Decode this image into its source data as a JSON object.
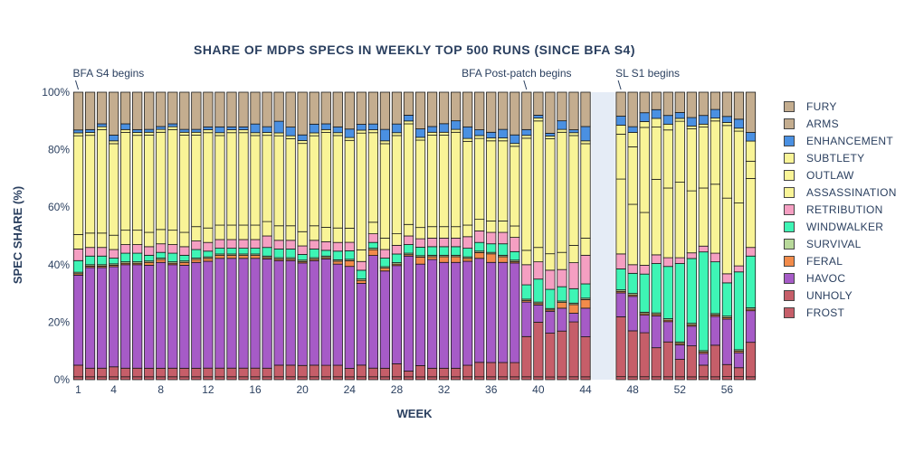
{
  "chart_data": {
    "type": "bar",
    "stacked": true,
    "title": "SHARE OF MDPS SPECS IN WEEKLY TOP 500 RUNS (SINCE BFA S4)",
    "xlabel": "WEEK",
    "ylabel": "SPEC SHARE (%)",
    "ylim": [
      0,
      100
    ],
    "xlim": [
      0.5,
      58.5
    ],
    "y_ticks": [
      "0%",
      "20%",
      "40%",
      "60%",
      "80%",
      "100%"
    ],
    "x_ticks": [
      1,
      4,
      8,
      12,
      16,
      20,
      24,
      28,
      32,
      36,
      40,
      44,
      48,
      52,
      56
    ],
    "weeks": [
      1,
      2,
      3,
      4,
      5,
      6,
      7,
      8,
      9,
      10,
      11,
      12,
      13,
      14,
      15,
      16,
      17,
      18,
      19,
      20,
      21,
      22,
      23,
      24,
      25,
      26,
      27,
      28,
      29,
      30,
      31,
      32,
      33,
      34,
      35,
      36,
      37,
      38,
      39,
      40,
      41,
      42,
      43,
      44,
      47,
      48,
      49,
      50,
      51,
      52,
      53,
      54,
      55,
      56,
      57,
      58
    ],
    "shaded_region": [
      44.5,
      46.5
    ],
    "legend_position": "right",
    "annotations": [
      {
        "text": "BFA S4 begins",
        "week": 1
      },
      {
        "text": "BFA Post-patch begins",
        "week": 39
      },
      {
        "text": "SL S1 begins",
        "week": 47
      }
    ],
    "series": [
      {
        "name": "FROST",
        "color": "#c65e69",
        "values": [
          1,
          1,
          1,
          1,
          1,
          1,
          1,
          1,
          1,
          1,
          1,
          1,
          1,
          1,
          1,
          1,
          1,
          1,
          1,
          1,
          1,
          1,
          1,
          1,
          1,
          1,
          1,
          1,
          1,
          1,
          1,
          1,
          1,
          1,
          1,
          1,
          1,
          1,
          1,
          1,
          1,
          1,
          1,
          1,
          1,
          1,
          1,
          1,
          1,
          1,
          1,
          1,
          1,
          1,
          1,
          1
        ]
      },
      {
        "name": "UNHOLY",
        "color": "#c65e69",
        "values": [
          4,
          3,
          3,
          3.5,
          3,
          3,
          3,
          3,
          3,
          3,
          3,
          3,
          3,
          3,
          3,
          3,
          3,
          4,
          4,
          4,
          4,
          4,
          4,
          3,
          4,
          3,
          3,
          4.5,
          2,
          4,
          3,
          3,
          3,
          4,
          5,
          5,
          5,
          5,
          14,
          19,
          16,
          16,
          19,
          14,
          20,
          16,
          15,
          10,
          12,
          6,
          11,
          4,
          11,
          4,
          3,
          12
        ]
      },
      {
        "name": "HAVOC",
        "color": "#a65bc7",
        "values": [
          31,
          35,
          35,
          35,
          36,
          36,
          36,
          37,
          36,
          36,
          37,
          37,
          38,
          38,
          38,
          38,
          38,
          36,
          36,
          36,
          36,
          37,
          35,
          36,
          28,
          39,
          34,
          34,
          40,
          36,
          38,
          37,
          37,
          36,
          36,
          35,
          35,
          35,
          12,
          6,
          8,
          8,
          3,
          10,
          8,
          12,
          6,
          11,
          7,
          5,
          7,
          4,
          10,
          15,
          5,
          11
        ]
      },
      {
        "name": "FERAL",
        "color": "#f28b4a",
        "values": [
          0.5,
          0.5,
          0.5,
          0.5,
          0.5,
          0.5,
          1,
          1,
          0.5,
          1,
          1,
          1,
          1,
          1,
          1,
          1,
          0.5,
          0.5,
          0.5,
          0.5,
          0.5,
          0.5,
          1,
          2,
          1,
          2,
          1,
          0.5,
          0.5,
          2.5,
          1,
          2,
          2,
          1,
          2,
          3,
          2,
          0.5,
          0.5,
          0.5,
          0.5,
          2,
          3,
          3,
          0.5,
          0.5,
          0.5,
          0.5,
          0.5,
          0.5,
          0.5,
          0.5,
          0.5,
          0.5,
          0.5,
          0.5
        ]
      },
      {
        "name": "SURVIVAL",
        "color": "#b8d99a",
        "values": [
          0.5,
          0.5,
          0.5,
          0.5,
          0.5,
          0.5,
          0.5,
          0.5,
          0.5,
          0.5,
          0.5,
          0.5,
          0.5,
          0.5,
          0.5,
          0.5,
          0.5,
          0.5,
          0.5,
          0.5,
          0.5,
          0.5,
          0.5,
          0.5,
          0.5,
          0.5,
          0.5,
          0.5,
          0.5,
          0.5,
          0.5,
          0.5,
          0.5,
          0.5,
          0.5,
          0.5,
          0.5,
          0.5,
          0.5,
          0.5,
          0.5,
          0.5,
          0.5,
          0.5,
          0.5,
          0.5,
          0.5,
          0.5,
          0.5,
          0.5,
          0.5,
          0.5,
          0.5,
          0.5,
          0.5,
          0.5
        ]
      },
      {
        "name": "WINDWALKER",
        "color": "#3ef5b5",
        "values": [
          4,
          3,
          3,
          2,
          3,
          3,
          2,
          2,
          3,
          2,
          3,
          2,
          2,
          2,
          2,
          2,
          3,
          3,
          3,
          2,
          3,
          2,
          3,
          3,
          3,
          2,
          3,
          3,
          3,
          3,
          3,
          3,
          3,
          3,
          3,
          3,
          4,
          3,
          5,
          8,
          7,
          5,
          5,
          5,
          7,
          7,
          13,
          17,
          18,
          27,
          23,
          34,
          18,
          11,
          26,
          18
        ]
      },
      {
        "name": "RETRIBUTION",
        "color": "#f59fc2",
        "values": [
          4,
          3,
          3,
          3,
          3,
          3,
          3,
          3,
          3,
          3,
          3,
          3,
          3,
          3,
          3,
          3,
          4,
          3,
          3,
          3,
          3,
          3,
          3,
          3,
          3,
          3,
          3,
          3,
          3,
          3,
          3,
          3,
          3,
          4,
          4,
          4,
          4,
          5,
          7,
          6,
          7,
          6,
          9,
          10,
          5,
          3,
          3,
          3,
          3,
          2,
          2,
          2,
          3,
          3,
          2,
          3
        ]
      },
      {
        "name": "ASSASSINATION",
        "color": "#f9f497",
        "values": [
          5,
          5,
          5,
          5,
          5,
          5,
          5,
          5,
          5,
          5,
          5,
          5,
          5,
          5,
          5,
          5,
          5,
          5,
          5,
          5,
          5,
          5,
          5,
          5,
          4,
          4,
          4,
          4,
          4,
          4,
          4,
          4,
          4,
          4,
          4,
          4,
          4,
          4,
          5,
          5,
          6,
          6,
          6,
          6,
          25,
          21,
          18,
          26,
          24,
          26,
          22,
          20,
          24,
          25,
          21,
          24
        ]
      },
      {
        "name": "OUTLAW",
        "color": "#f9f497",
        "values": [
          34,
          34,
          36,
          32,
          34,
          33,
          34,
          34,
          35,
          34,
          32,
          33,
          31,
          32,
          32,
          31,
          30,
          31,
          30,
          31,
          31,
          33,
          32,
          31,
          40,
          31,
          33,
          34,
          35,
          31,
          32,
          32,
          33,
          29,
          28,
          28,
          28,
          28,
          39,
          44,
          42,
          42,
          38,
          33,
          15,
          20,
          29,
          18,
          20,
          21,
          22,
          21,
          22,
          24,
          24,
          6
        ]
      },
      {
        "name": "SUBTLETY",
        "color": "#f9f497",
        "values": [
          1,
          1,
          1,
          1,
          1,
          1,
          1,
          1,
          1,
          1,
          1,
          1,
          1,
          1,
          1,
          1,
          1,
          1,
          1,
          1,
          1,
          1,
          1,
          1,
          1,
          1,
          1,
          1,
          1,
          1,
          1,
          1,
          1,
          1,
          1,
          1,
          1,
          1,
          1,
          1,
          1,
          1,
          1,
          1,
          3,
          5,
          2,
          3,
          2,
          1,
          1,
          1,
          1,
          1,
          1,
          7
        ]
      },
      {
        "name": "ENHANCEMENT",
        "color": "#4a90e2",
        "values": [
          1,
          1,
          1,
          2,
          2,
          1,
          1,
          1,
          1,
          1,
          1,
          1,
          2,
          1,
          1,
          3,
          2,
          4,
          3,
          2,
          3,
          2,
          2,
          3,
          2,
          2,
          4,
          3,
          2,
          3,
          2,
          3,
          3,
          4,
          2,
          2,
          3,
          3,
          2,
          1,
          1,
          3,
          1,
          5,
          3,
          2,
          3,
          3,
          3,
          2,
          3,
          3,
          3,
          2,
          3,
          3
        ]
      },
      {
        "name": "ARMS",
        "color": "#c4ad8f",
        "values": [
          13,
          13,
          11,
          15,
          11,
          13,
          13,
          12,
          11,
          13,
          13,
          12,
          12,
          12,
          12,
          11,
          12,
          10,
          12,
          15,
          11,
          11,
          12,
          13,
          11,
          11,
          13,
          11,
          8,
          13,
          12,
          11,
          10,
          12,
          13,
          14,
          13,
          15,
          13,
          8,
          15,
          10,
          13,
          12,
          8,
          12,
          7,
          6,
          8,
          7,
          9,
          8,
          6,
          8,
          9,
          14
        ]
      },
      {
        "name": "FURY",
        "color": "#c4ad8f",
        "values": [
          0,
          0,
          0,
          0,
          0,
          0,
          0,
          0,
          0,
          0,
          0,
          0,
          0,
          0,
          0,
          0,
          0,
          0,
          0,
          0,
          0,
          0,
          0,
          0,
          0,
          0,
          0,
          0,
          0,
          0,
          0,
          0,
          0,
          0,
          0,
          0,
          0,
          0,
          0,
          0,
          0,
          0,
          0,
          0,
          0,
          0,
          0,
          0,
          0,
          0,
          0,
          0,
          0,
          0,
          0,
          0
        ]
      }
    ]
  }
}
